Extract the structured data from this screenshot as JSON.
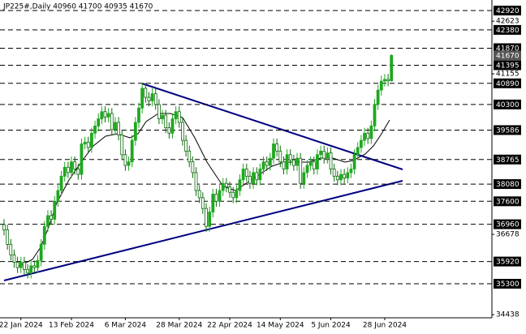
{
  "chart_data": {
    "type": "candlestick",
    "title": "JP225#,Daily  40960 41700 40935 41670",
    "up_color": "#1fa81f",
    "down_color": "#0b6b0b",
    "level_color": "#000000",
    "ylim": [
      34351,
      43214
    ],
    "yticks": [
      42623,
      41155,
      36678,
      34438
    ],
    "levels": [
      42920,
      42380,
      41870,
      41395,
      40890,
      40300,
      39586,
      38765,
      38080,
      37600,
      36960,
      35920,
      35300
    ],
    "categories": [
      null,
      null,
      null,
      null,
      null,
      "22 Jan 2024",
      null,
      null,
      null,
      null,
      null,
      null,
      null,
      null,
      null,
      null,
      null,
      null,
      null,
      null,
      "13 Feb 2024",
      null,
      null,
      null,
      null,
      null,
      null,
      null,
      null,
      null,
      null,
      null,
      null,
      null,
      null,
      null,
      "6 Mar 2024",
      null,
      null,
      null,
      null,
      null,
      null,
      null,
      null,
      null,
      null,
      null,
      null,
      null,
      null,
      null,
      "28 Mar 2024",
      null,
      null,
      null,
      null,
      null,
      null,
      null,
      null,
      null,
      null,
      null,
      null,
      null,
      null,
      "22 Apr 2024",
      null,
      null,
      null,
      null,
      null,
      null,
      null,
      null,
      null,
      null,
      null,
      null,
      null,
      null,
      "14 May 2024",
      null,
      null,
      null,
      null,
      null,
      null,
      null,
      null,
      null,
      null,
      null,
      null,
      null,
      null,
      "5 Jun 2024",
      null,
      null,
      null,
      null,
      null,
      null,
      null,
      null,
      null,
      null,
      null,
      null,
      null,
      null,
      null,
      "28 Jun 2024",
      null,
      null
    ],
    "open": [
      36950,
      36800,
      36400,
      36100,
      35900,
      35750,
      35900,
      35700,
      35600,
      35800,
      35750,
      35950,
      36400,
      36900,
      37200,
      37100,
      37600,
      37900,
      38300,
      38550,
      38400,
      38700,
      38500,
      38350,
      39200,
      39250,
      39100,
      39500,
      39700,
      39900,
      40100,
      39950,
      40050,
      39600,
      39800,
      39450,
      38900,
      38600,
      38700,
      39300,
      39800,
      40200,
      40750,
      40500,
      40400,
      40600,
      40300,
      39900,
      40000,
      39650,
      39500,
      39900,
      40100,
      39800,
      39300,
      39000,
      38700,
      38400,
      37900,
      37700,
      37400,
      36900,
      37300,
      37800,
      37600,
      37900,
      38100,
      38000,
      37850,
      37700,
      37900,
      38200,
      38500,
      38300,
      38100,
      38400,
      38200,
      38500,
      38700,
      38600,
      38800,
      39200,
      39000,
      38700,
      38500,
      38900,
      38750,
      38600,
      38800,
      38100,
      38400,
      38600,
      38700,
      38500,
      38900,
      39000,
      38800,
      38950,
      38500,
      38300,
      38200,
      38350,
      38250,
      38400,
      38500,
      38900,
      39100,
      39300,
      39500,
      39350,
      39700,
      40300,
      40700,
      40950,
      41000,
      40960
    ],
    "high": [
      37100,
      36950,
      36550,
      36250,
      36050,
      36050,
      36050,
      35850,
      35950,
      35950,
      36100,
      36550,
      37050,
      37350,
      37350,
      37750,
      38050,
      38450,
      38700,
      38700,
      38850,
      38850,
      38650,
      39350,
      39400,
      39400,
      39650,
      39850,
      40050,
      40250,
      40250,
      40200,
      40200,
      39950,
      39950,
      39600,
      39050,
      38850,
      39450,
      39950,
      40350,
      40900,
      40900,
      40650,
      40750,
      40750,
      40450,
      40150,
      40150,
      39800,
      40050,
      40250,
      40250,
      39950,
      39450,
      39150,
      38850,
      38550,
      38050,
      37850,
      37550,
      37450,
      37950,
      37950,
      38050,
      38250,
      38250,
      38150,
      38000,
      38050,
      38350,
      38650,
      38650,
      38450,
      38550,
      38550,
      38650,
      38850,
      38850,
      38950,
      39350,
      39350,
      39150,
      38850,
      39050,
      39050,
      38900,
      38950,
      38950,
      38550,
      38750,
      38850,
      38850,
      39050,
      39150,
      39150,
      39100,
      39100,
      38650,
      38450,
      38500,
      38500,
      38550,
      38650,
      39050,
      39250,
      39450,
      39650,
      39650,
      39850,
      40450,
      40850,
      41100,
      41150,
      41150,
      41700
    ],
    "low": [
      36650,
      36250,
      35950,
      35750,
      35600,
      35600,
      35550,
      35450,
      35450,
      35600,
      35600,
      35800,
      36250,
      36750,
      36950,
      36950,
      37450,
      37750,
      38150,
      38250,
      38250,
      38350,
      38200,
      38200,
      39050,
      38950,
      38950,
      39350,
      39550,
      39750,
      39800,
      39800,
      39450,
      39450,
      39300,
      38750,
      38450,
      38450,
      38550,
      39150,
      39650,
      40050,
      40350,
      40250,
      40250,
      40150,
      39750,
      39750,
      39500,
      39350,
      39350,
      39750,
      39650,
      39150,
      38850,
      38550,
      38250,
      37750,
      37550,
      37250,
      36750,
      36750,
      37150,
      37450,
      37450,
      37750,
      37850,
      37700,
      37550,
      37550,
      37750,
      38050,
      38150,
      37950,
      37950,
      38050,
      38050,
      38350,
      38450,
      38450,
      38650,
      38850,
      38550,
      38350,
      38350,
      38600,
      38450,
      38450,
      37950,
      37950,
      38250,
      38450,
      38350,
      38350,
      38750,
      38650,
      38650,
      38350,
      38150,
      38050,
      38050,
      38100,
      38100,
      38250,
      38350,
      38750,
      38950,
      39150,
      39200,
      39200,
      39550,
      40150,
      40550,
      40800,
      40810,
      40935
    ],
    "close": [
      36800,
      36400,
      36100,
      35900,
      35750,
      35900,
      35700,
      35600,
      35800,
      35750,
      35950,
      36400,
      36900,
      37200,
      37100,
      37600,
      37900,
      38300,
      38550,
      38400,
      38700,
      38500,
      38350,
      39200,
      39250,
      39100,
      39500,
      39700,
      39900,
      40100,
      39950,
      40050,
      39600,
      39800,
      39450,
      38900,
      38600,
      38700,
      39300,
      39800,
      40200,
      40750,
      40500,
      40400,
      40600,
      40300,
      39900,
      40000,
      39650,
      39500,
      39900,
      40100,
      39800,
      39300,
      39000,
      38700,
      38400,
      37900,
      37700,
      37400,
      36900,
      37300,
      37800,
      37600,
      37900,
      38100,
      38000,
      37850,
      37700,
      37900,
      38200,
      38500,
      38300,
      38100,
      38400,
      38200,
      38500,
      38700,
      38600,
      38800,
      39200,
      39000,
      38700,
      38500,
      38900,
      38750,
      38600,
      38800,
      38100,
      38400,
      38600,
      38700,
      38500,
      38900,
      39000,
      38800,
      38950,
      38500,
      38300,
      38200,
      38350,
      38250,
      38400,
      38500,
      38900,
      39100,
      39300,
      39500,
      39350,
      39700,
      40300,
      40700,
      40950,
      41000,
      40960,
      41670
    ]
  }
}
